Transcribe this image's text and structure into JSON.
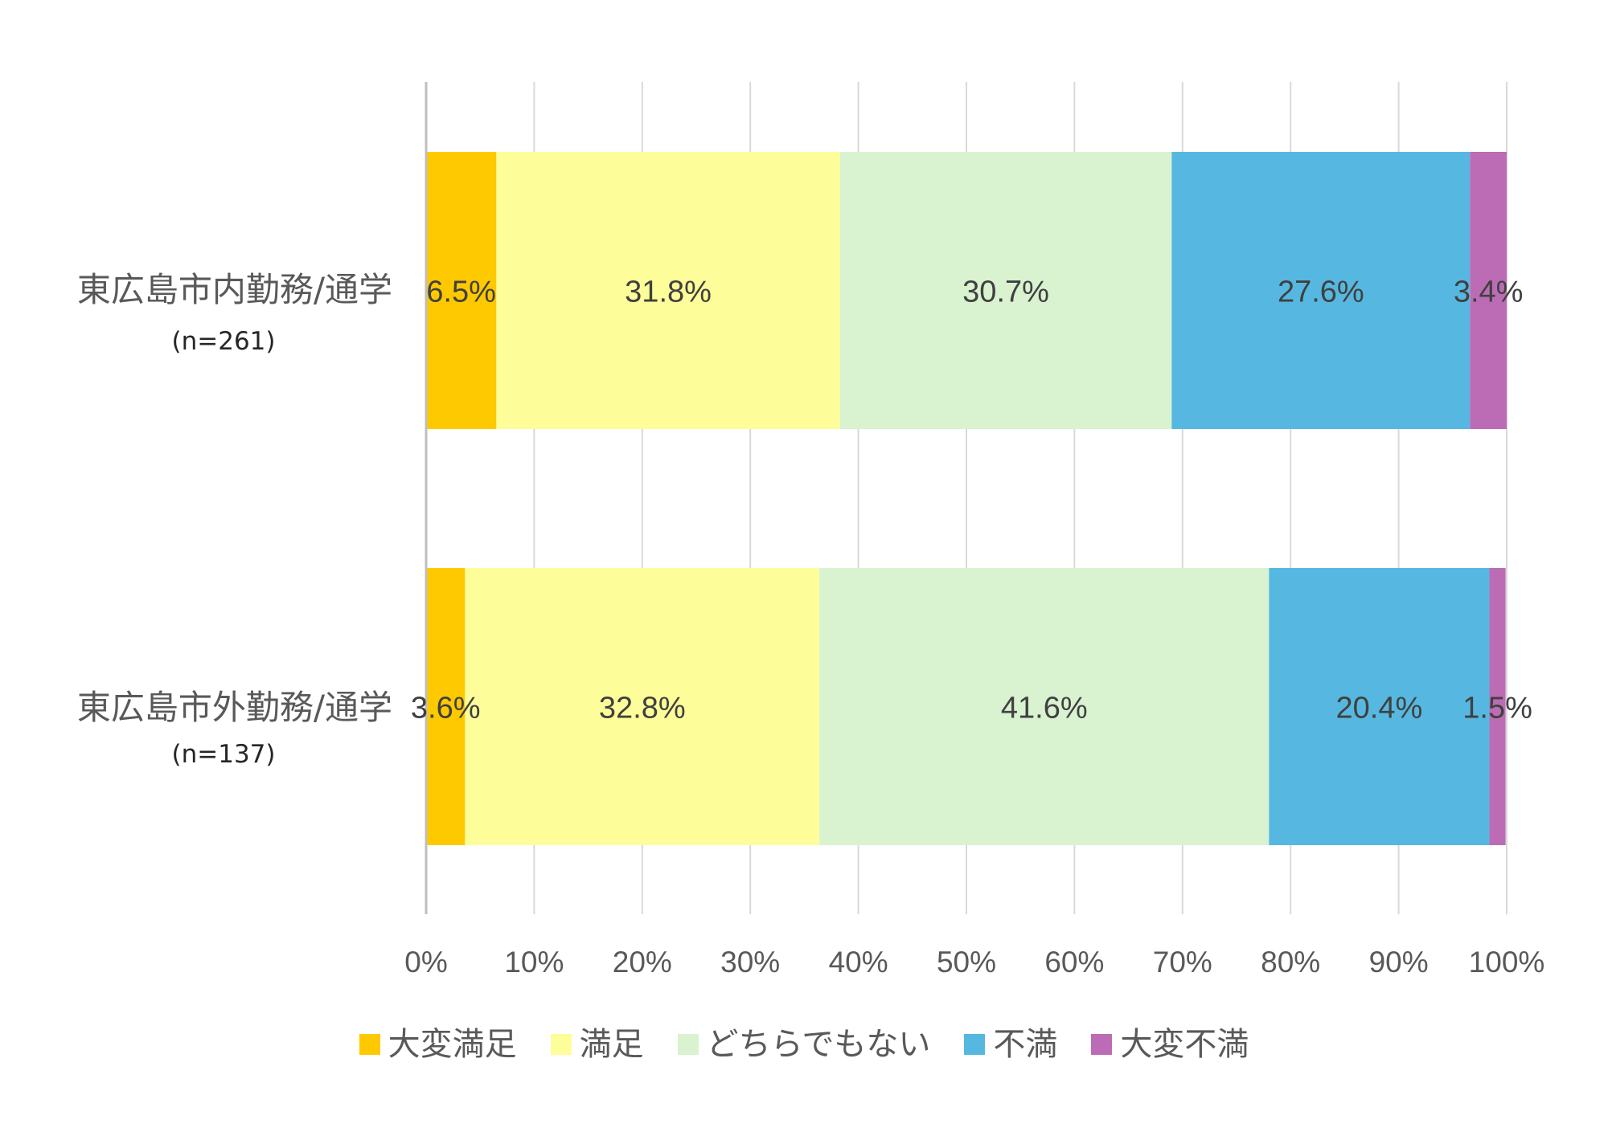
{
  "chart_data": {
    "type": "bar",
    "orientation": "horizontal",
    "stacked": "percent",
    "categories": [
      {
        "name": "東広島市内勤務/通学",
        "n_label": "(n=261)"
      },
      {
        "name": "東広島市外勤務/通学",
        "n_label": "(n=137)"
      }
    ],
    "series": [
      {
        "name": "大変満足",
        "color": "#FFC900",
        "values": [
          6.5,
          3.6
        ],
        "labels": [
          "6.5%",
          "3.6%"
        ]
      },
      {
        "name": "満足",
        "color": "#FDFD99",
        "values": [
          31.8,
          32.8
        ],
        "labels": [
          "31.8%",
          "32.8%"
        ]
      },
      {
        "name": "どちらでもない",
        "color": "#D9F2D0",
        "values": [
          30.7,
          41.6
        ],
        "labels": [
          "30.7%",
          "41.6%"
        ]
      },
      {
        "name": "不満",
        "color": "#56B8E0",
        "values": [
          27.6,
          20.4
        ],
        "labels": [
          "27.6%",
          "20.4%"
        ]
      },
      {
        "name": "大変不満",
        "color": "#BC6CB4",
        "values": [
          3.4,
          1.5
        ],
        "labels": [
          "3.4%",
          "1.5%"
        ]
      }
    ],
    "xlim": [
      0,
      100
    ],
    "x_ticks": [
      "0%",
      "10%",
      "20%",
      "30%",
      "40%",
      "50%",
      "60%",
      "70%",
      "80%",
      "90%",
      "100%"
    ],
    "grid": true,
    "legend_position": "bottom"
  }
}
